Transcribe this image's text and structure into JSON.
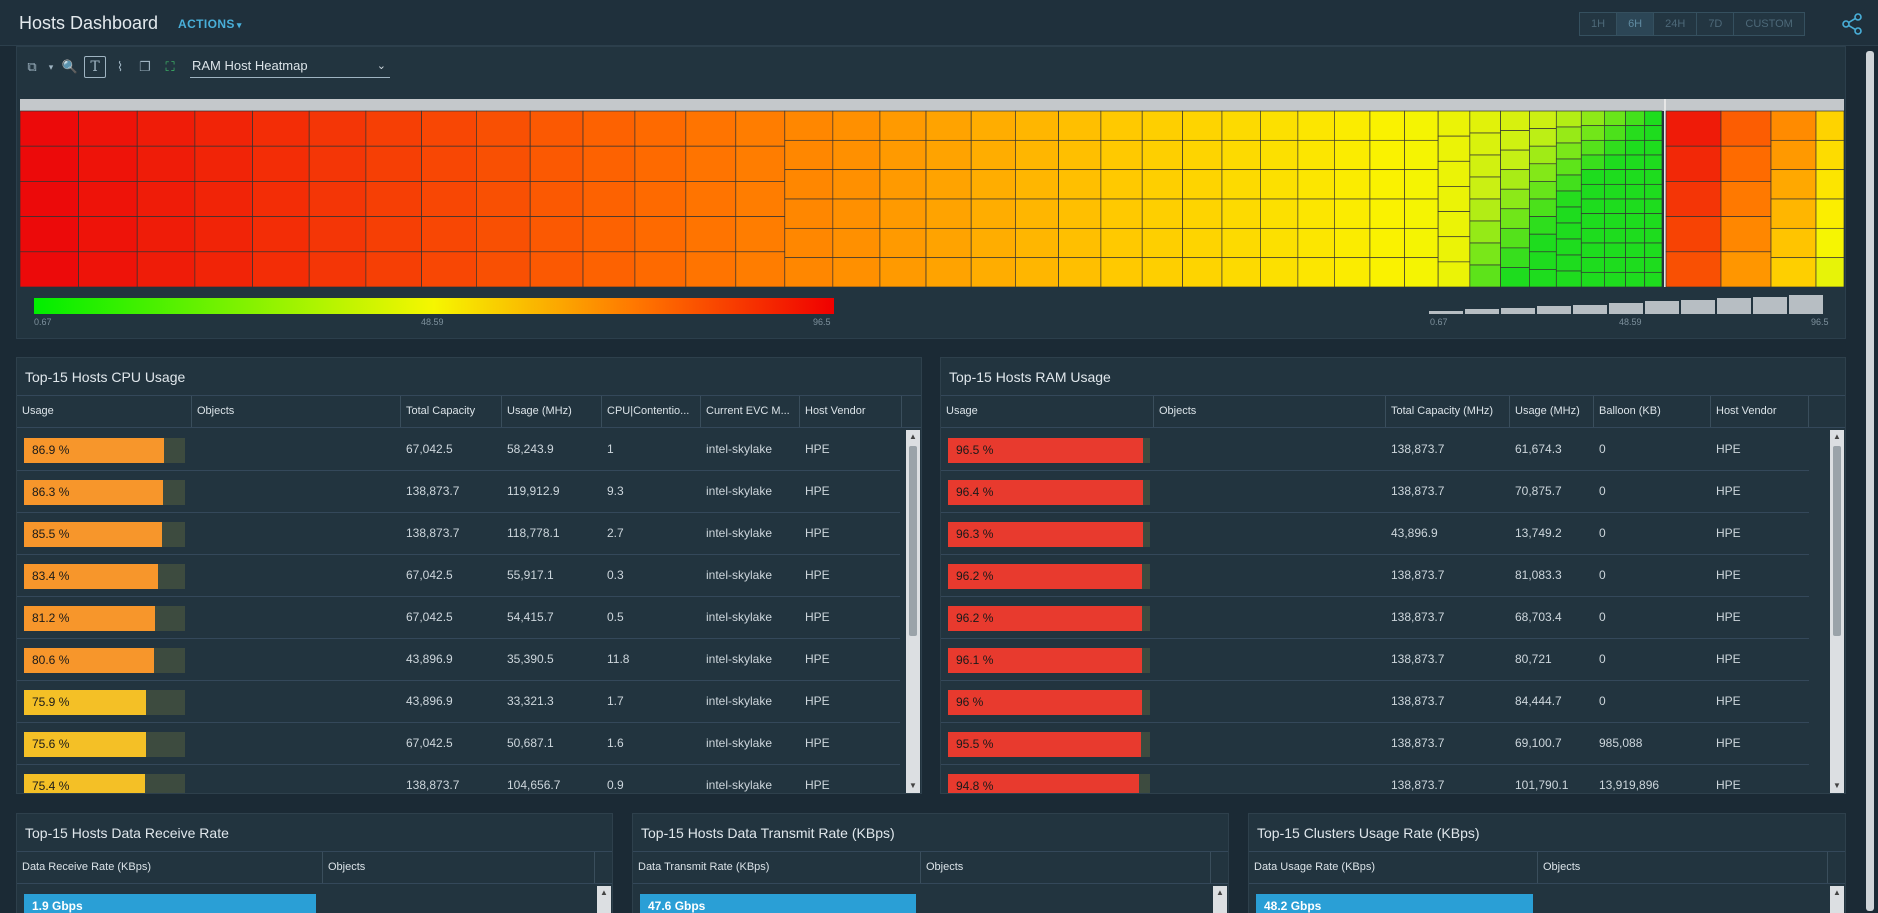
{
  "header": {
    "title": "Hosts Dashboard",
    "actions_label": "ACTIONS",
    "time_ranges": [
      "1H",
      "6H",
      "24H",
      "7D",
      "CUSTOM"
    ],
    "active_range": "6H"
  },
  "heatmap": {
    "selected": "RAM Host Heatmap",
    "color_min": "0.67",
    "color_mid": "48.59",
    "color_max": "96.5",
    "size_min": "0.67",
    "size_mid": "48.59",
    "size_max": "96.5"
  },
  "cpu_table": {
    "title": "Top-15 Hosts CPU Usage",
    "columns": [
      "Usage",
      "Objects",
      "Total Capacity",
      "Usage (MHz)",
      "CPU|Contentio...",
      "Current EVC M...",
      "Host Vendor"
    ],
    "rows": [
      {
        "usage": "86.9 %",
        "pct": 86.9,
        "objects": "",
        "capacity": "67,042.5",
        "mhz": "58,243.9",
        "contention": "1",
        "evc": "intel-skylake",
        "vendor": "HPE"
      },
      {
        "usage": "86.3 %",
        "pct": 86.3,
        "objects": "",
        "capacity": "138,873.7",
        "mhz": "119,912.9",
        "contention": "9.3",
        "evc": "intel-skylake",
        "vendor": "HPE"
      },
      {
        "usage": "85.5 %",
        "pct": 85.5,
        "objects": "",
        "capacity": "138,873.7",
        "mhz": "118,778.1",
        "contention": "2.7",
        "evc": "intel-skylake",
        "vendor": "HPE"
      },
      {
        "usage": "83.4 %",
        "pct": 83.4,
        "objects": "",
        "capacity": "67,042.5",
        "mhz": "55,917.1",
        "contention": "0.3",
        "evc": "intel-skylake",
        "vendor": "HPE"
      },
      {
        "usage": "81.2 %",
        "pct": 81.2,
        "objects": "",
        "capacity": "67,042.5",
        "mhz": "54,415.7",
        "contention": "0.5",
        "evc": "intel-skylake",
        "vendor": "HPE"
      },
      {
        "usage": "80.6 %",
        "pct": 80.6,
        "objects": "",
        "capacity": "43,896.9",
        "mhz": "35,390.5",
        "contention": "11.8",
        "evc": "intel-skylake",
        "vendor": "HPE"
      },
      {
        "usage": "75.9 %",
        "pct": 75.9,
        "objects": "",
        "capacity": "43,896.9",
        "mhz": "33,321.3",
        "contention": "1.7",
        "evc": "intel-skylake",
        "vendor": "HPE"
      },
      {
        "usage": "75.6 %",
        "pct": 75.6,
        "objects": "",
        "capacity": "67,042.5",
        "mhz": "50,687.1",
        "contention": "1.6",
        "evc": "intel-skylake",
        "vendor": "HPE"
      },
      {
        "usage": "75.4 %",
        "pct": 75.4,
        "objects": "",
        "capacity": "138,873.7",
        "mhz": "104,656.7",
        "contention": "0.9",
        "evc": "intel-skylake",
        "vendor": "HPE"
      }
    ]
  },
  "ram_table": {
    "title": "Top-15 Hosts RAM Usage",
    "columns": [
      "Usage",
      "Objects",
      "Total Capacity (MHz)",
      "Usage (MHz)",
      "Balloon (KB)",
      "Host Vendor"
    ],
    "rows": [
      {
        "usage": "96.5 %",
        "pct": 96.5,
        "objects": "",
        "capacity": "138,873.7",
        "mhz": "61,674.3",
        "balloon": "0",
        "vendor": "HPE"
      },
      {
        "usage": "96.4 %",
        "pct": 96.4,
        "objects": "",
        "capacity": "138,873.7",
        "mhz": "70,875.7",
        "balloon": "0",
        "vendor": "HPE"
      },
      {
        "usage": "96.3 %",
        "pct": 96.3,
        "objects": "",
        "capacity": "43,896.9",
        "mhz": "13,749.2",
        "balloon": "0",
        "vendor": "HPE"
      },
      {
        "usage": "96.2 %",
        "pct": 96.2,
        "objects": "",
        "capacity": "138,873.7",
        "mhz": "81,083.3",
        "balloon": "0",
        "vendor": "HPE"
      },
      {
        "usage": "96.2 %",
        "pct": 96.2,
        "objects": "",
        "capacity": "138,873.7",
        "mhz": "68,703.4",
        "balloon": "0",
        "vendor": "HPE"
      },
      {
        "usage": "96.1 %",
        "pct": 96.1,
        "objects": "",
        "capacity": "138,873.7",
        "mhz": "80,721",
        "balloon": "0",
        "vendor": "HPE"
      },
      {
        "usage": "96 %",
        "pct": 96.0,
        "objects": "",
        "capacity": "138,873.7",
        "mhz": "84,444.7",
        "balloon": "0",
        "vendor": "HPE"
      },
      {
        "usage": "95.5 %",
        "pct": 95.5,
        "objects": "",
        "capacity": "138,873.7",
        "mhz": "69,100.7",
        "balloon": "985,088",
        "vendor": "HPE"
      },
      {
        "usage": "94.8 %",
        "pct": 94.8,
        "objects": "",
        "capacity": "138,873.7",
        "mhz": "101,790.1",
        "balloon": "13,919,896",
        "vendor": "HPE"
      }
    ]
  },
  "bottom_panels": [
    {
      "title": "Top-15 Hosts Data Receive Rate",
      "columns": [
        "Data Receive Rate (KBps)",
        "Objects"
      ],
      "first_value": "1.9 Gbps"
    },
    {
      "title": "Top-15 Hosts Data Transmit Rate (KBps)",
      "columns": [
        "Data Transmit Rate (KBps)",
        "Objects"
      ],
      "first_value": "47.6 Gbps"
    },
    {
      "title": "Top-15 Clusters Usage Rate (KBps)",
      "columns": [
        "Data Usage Rate (KBps)",
        "Objects"
      ],
      "first_value": "48.2 Gbps"
    }
  ],
  "colors": {
    "accent": "#49afd9",
    "cpu_bar_high": "#f7962b",
    "cpu_bar_mid": "#f4c026",
    "ram_bar": "#e83a2e",
    "rate_bar": "#2a9fd6"
  }
}
